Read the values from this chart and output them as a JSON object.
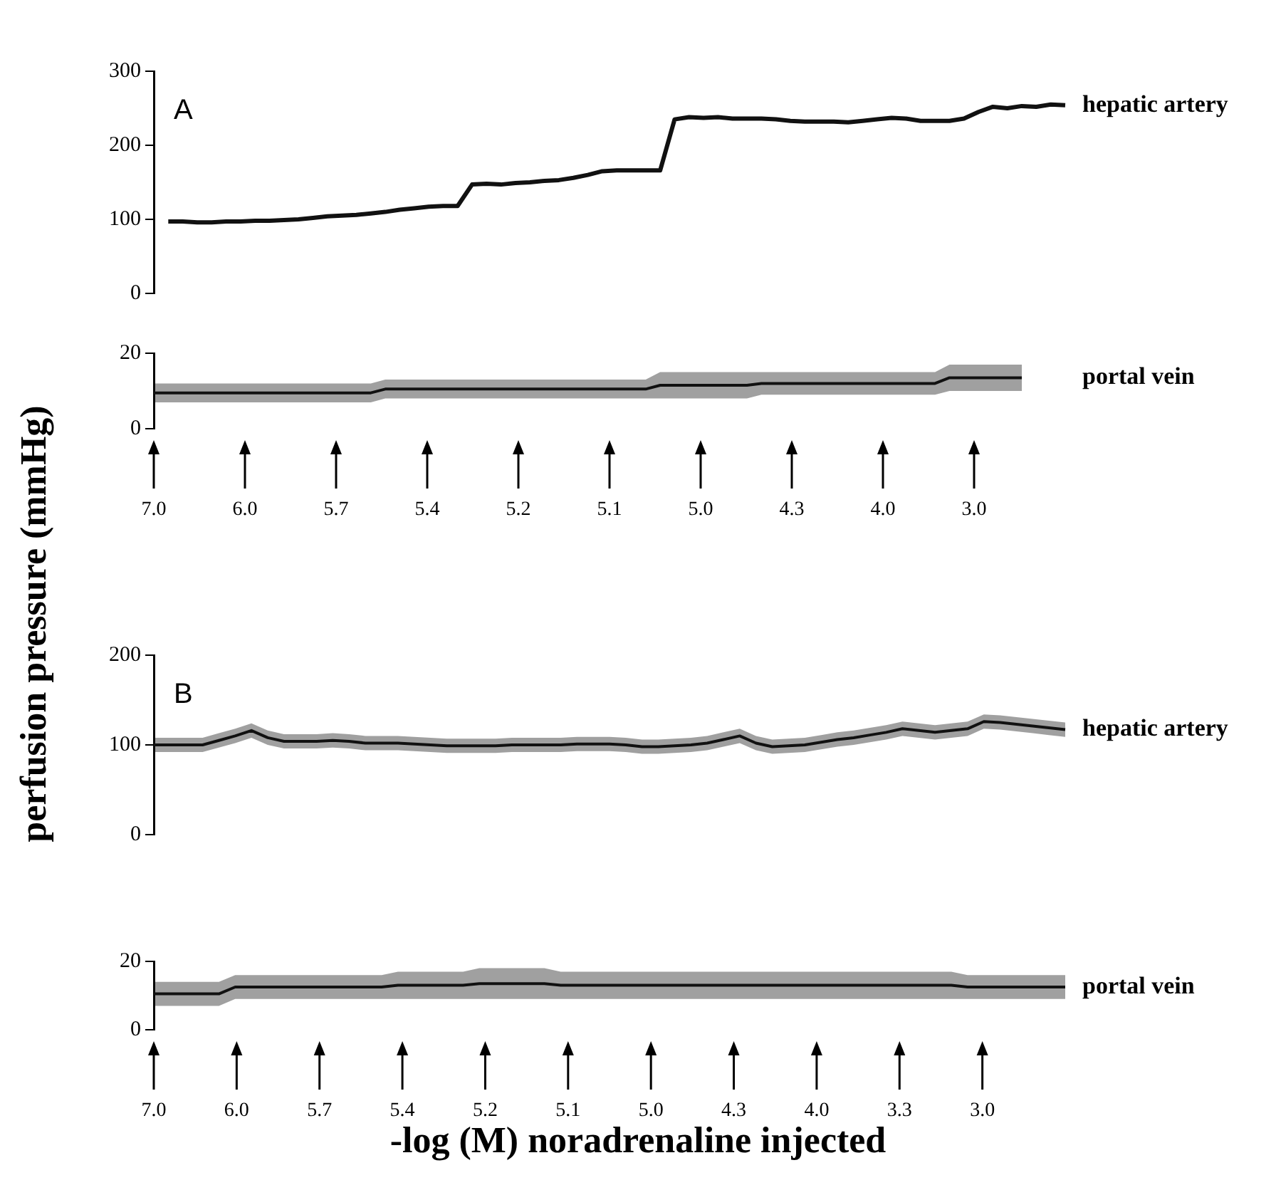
{
  "chart_data": [
    {
      "type": "line",
      "ylabel": "perfusion pressure (mmHg)",
      "annotations": [
        "A"
      ],
      "tick_labels": "y",
      "ylim": [
        0,
        300
      ],
      "yticks": [
        0,
        100,
        200,
        300
      ],
      "categories": [
        null,
        null,
        null,
        null,
        null,
        null,
        null,
        null,
        null,
        null,
        null,
        null,
        null,
        null,
        null,
        null,
        null,
        null,
        null,
        null,
        null,
        null,
        null,
        null,
        null,
        null,
        null,
        null,
        null,
        null,
        null,
        null,
        null,
        null,
        null,
        null,
        null,
        null,
        null,
        null,
        null,
        null,
        null,
        null,
        null,
        null,
        null,
        null,
        null,
        null,
        null,
        null,
        null,
        null,
        null,
        null,
        null,
        null,
        null,
        null,
        null,
        null,
        null,
        null
      ],
      "series": [
        {
          "name": "hepatic artery",
          "color": "#111111",
          "values": [
            null,
            97,
            97,
            96,
            96,
            97,
            97,
            98,
            98,
            99,
            100,
            102,
            104,
            105,
            106,
            108,
            110,
            113,
            115,
            117,
            118,
            118,
            147,
            148,
            147,
            149,
            150,
            152,
            153,
            156,
            160,
            165,
            166,
            166,
            166,
            166,
            235,
            238,
            237,
            238,
            236,
            236,
            236,
            235,
            233,
            232,
            232,
            232,
            231,
            233,
            235,
            237,
            236,
            233,
            233,
            233,
            236,
            245,
            252,
            250,
            253,
            252,
            255,
            254
          ]
        }
      ]
    },
    {
      "type": "line",
      "annotations": [
        "7.0",
        "6.0",
        "5.7",
        "5.4",
        "5.2",
        "5.1",
        "5.0",
        "4.3",
        "4.0",
        "3.0"
      ],
      "tick_labels": "y",
      "ylim": [
        0,
        20
      ],
      "yticks": [
        0,
        20
      ],
      "categories": [
        null,
        null,
        null,
        null,
        null,
        null,
        null,
        null,
        null,
        null,
        null,
        null,
        null,
        null,
        null,
        null,
        null,
        null,
        null,
        null,
        null,
        null,
        null,
        null,
        null,
        null,
        null,
        null,
        null,
        null,
        null,
        null,
        null,
        null,
        null,
        null,
        null,
        null,
        null,
        null,
        null,
        null,
        null,
        null,
        null,
        null,
        null,
        null,
        null,
        null,
        null,
        null,
        null,
        null,
        null,
        null,
        null,
        null,
        null,
        null,
        null,
        null,
        null,
        null
      ],
      "series": [
        {
          "name": "portal vein",
          "color": "#111111",
          "values": [
            9.5,
            9.5,
            9.5,
            9.5,
            9.5,
            9.5,
            9.5,
            9.5,
            9.5,
            9.5,
            9.5,
            9.5,
            9.5,
            9.5,
            9.5,
            9.5,
            10.5,
            10.5,
            10.5,
            10.5,
            10.5,
            10.5,
            10.5,
            10.5,
            10.5,
            10.5,
            10.5,
            10.5,
            10.5,
            10.5,
            10.5,
            10.5,
            10.5,
            10.5,
            10.5,
            11.5,
            11.5,
            11.5,
            11.5,
            11.5,
            11.5,
            11.5,
            12,
            12,
            12,
            12,
            12,
            12,
            12,
            12,
            12,
            12,
            12,
            12,
            12,
            13.5,
            13.5,
            13.5,
            13.5,
            13.5,
            13.5,
            null,
            null,
            null
          ],
          "lower": [
            7,
            7,
            7,
            7,
            7,
            7,
            7,
            7,
            7,
            7,
            7,
            7,
            7,
            7,
            7,
            7,
            8,
            8,
            8,
            8,
            8,
            8,
            8,
            8,
            8,
            8,
            8,
            8,
            8,
            8,
            8,
            8,
            8,
            8,
            8,
            8,
            8,
            8,
            8,
            8,
            8,
            8,
            9,
            9,
            9,
            9,
            9,
            9,
            9,
            9,
            9,
            9,
            9,
            9,
            9,
            10,
            10,
            10,
            10,
            10,
            10,
            null,
            null,
            null
          ],
          "upper": [
            12,
            12,
            12,
            12,
            12,
            12,
            12,
            12,
            12,
            12,
            12,
            12,
            12,
            12,
            12,
            12,
            13,
            13,
            13,
            13,
            13,
            13,
            13,
            13,
            13,
            13,
            13,
            13,
            13,
            13,
            13,
            13,
            13,
            13,
            13,
            15,
            15,
            15,
            15,
            15,
            15,
            15,
            15,
            15,
            15,
            15,
            15,
            15,
            15,
            15,
            15,
            15,
            15,
            15,
            15,
            17,
            17,
            17,
            17,
            17,
            17,
            null,
            null,
            null
          ]
        }
      ]
    },
    {
      "type": "line",
      "annotations": [
        "B"
      ],
      "tick_labels": "y",
      "ylim": [
        0,
        200
      ],
      "yticks": [
        0,
        100,
        200
      ],
      "categories": [
        null,
        null,
        null,
        null,
        null,
        null,
        null,
        null,
        null,
        null,
        null,
        null,
        null,
        null,
        null,
        null,
        null,
        null,
        null,
        null,
        null,
        null,
        null,
        null,
        null,
        null,
        null,
        null,
        null,
        null,
        null,
        null,
        null,
        null,
        null,
        null,
        null,
        null,
        null,
        null,
        null,
        null,
        null,
        null,
        null,
        null,
        null,
        null,
        null,
        null,
        null,
        null,
        null,
        null,
        null,
        null,
        null
      ],
      "series": [
        {
          "name": "hepatic artery",
          "color": "#111111",
          "values": [
            100,
            100,
            100,
            100,
            105,
            110,
            116,
            108,
            104,
            104,
            104,
            105,
            104,
            102,
            102,
            102,
            101,
            100,
            99,
            99,
            99,
            99,
            100,
            100,
            100,
            100,
            101,
            101,
            101,
            100,
            98,
            98,
            99,
            100,
            102,
            106,
            110,
            102,
            98,
            99,
            100,
            103,
            106,
            108,
            111,
            114,
            118,
            116,
            114,
            116,
            118,
            126,
            125,
            123,
            121,
            119,
            117
          ],
          "lower": [
            92,
            92,
            92,
            92,
            97,
            102,
            108,
            100,
            96,
            96,
            96,
            97,
            96,
            94,
            94,
            94,
            93,
            92,
            91,
            91,
            91,
            91,
            92,
            92,
            92,
            92,
            93,
            93,
            93,
            92,
            90,
            90,
            91,
            92,
            94,
            98,
            102,
            94,
            90,
            91,
            92,
            95,
            98,
            100,
            103,
            106,
            110,
            108,
            106,
            108,
            110,
            118,
            117,
            115,
            113,
            111,
            109
          ],
          "upper": [
            108,
            108,
            108,
            108,
            113,
            118,
            124,
            116,
            112,
            112,
            112,
            113,
            112,
            110,
            110,
            110,
            109,
            108,
            107,
            107,
            107,
            107,
            108,
            108,
            108,
            108,
            109,
            109,
            109,
            108,
            106,
            106,
            107,
            108,
            110,
            114,
            118,
            110,
            106,
            107,
            108,
            111,
            114,
            116,
            119,
            122,
            126,
            124,
            122,
            124,
            126,
            134,
            133,
            131,
            129,
            127,
            125
          ]
        }
      ]
    },
    {
      "type": "line",
      "xlabel": "-log (M) noradrenaline injected",
      "annotations": [
        "7.0",
        "6.0",
        "5.7",
        "5.4",
        "5.2",
        "5.1",
        "5.0",
        "4.3",
        "4.0",
        "3.3",
        "3.0"
      ],
      "tick_labels": "y",
      "ylim": [
        0,
        20
      ],
      "yticks": [
        0,
        20
      ],
      "categories": [
        null,
        null,
        null,
        null,
        null,
        null,
        null,
        null,
        null,
        null,
        null,
        null,
        null,
        null,
        null,
        null,
        null,
        null,
        null,
        null,
        null,
        null,
        null,
        null,
        null,
        null,
        null,
        null,
        null,
        null,
        null,
        null,
        null,
        null,
        null,
        null,
        null,
        null,
        null,
        null,
        null,
        null,
        null,
        null,
        null,
        null,
        null,
        null,
        null,
        null,
        null,
        null,
        null,
        null,
        null,
        null,
        null
      ],
      "series": [
        {
          "name": "portal vein",
          "color": "#111111",
          "values": [
            10.5,
            10.5,
            10.5,
            10.5,
            10.5,
            12.5,
            12.5,
            12.5,
            12.5,
            12.5,
            12.5,
            12.5,
            12.5,
            12.5,
            12.5,
            13,
            13,
            13,
            13,
            13,
            13.5,
            13.5,
            13.5,
            13.5,
            13.5,
            13,
            13,
            13,
            13,
            13,
            13,
            13,
            13,
            13,
            13,
            13,
            13,
            13,
            13,
            13,
            13,
            13,
            13,
            13,
            13,
            13,
            13,
            13,
            13,
            13,
            12.5,
            12.5,
            12.5,
            12.5,
            12.5,
            12.5,
            12.5
          ],
          "lower": [
            7,
            7,
            7,
            7,
            7,
            9,
            9,
            9,
            9,
            9,
            9,
            9,
            9,
            9,
            9,
            9,
            9,
            9,
            9,
            9,
            9,
            9,
            9,
            9,
            9,
            9,
            9,
            9,
            9,
            9,
            9,
            9,
            9,
            9,
            9,
            9,
            9,
            9,
            9,
            9,
            9,
            9,
            9,
            9,
            9,
            9,
            9,
            9,
            9,
            9,
            9,
            9,
            9,
            9,
            9,
            9,
            9
          ],
          "upper": [
            14,
            14,
            14,
            14,
            14,
            16,
            16,
            16,
            16,
            16,
            16,
            16,
            16,
            16,
            16,
            17,
            17,
            17,
            17,
            17,
            18,
            18,
            18,
            18,
            18,
            17,
            17,
            17,
            17,
            17,
            17,
            17,
            17,
            17,
            17,
            17,
            17,
            17,
            17,
            17,
            17,
            17,
            17,
            17,
            17,
            17,
            17,
            17,
            17,
            17,
            16,
            16,
            16,
            16,
            16,
            16,
            16
          ]
        }
      ]
    }
  ]
}
